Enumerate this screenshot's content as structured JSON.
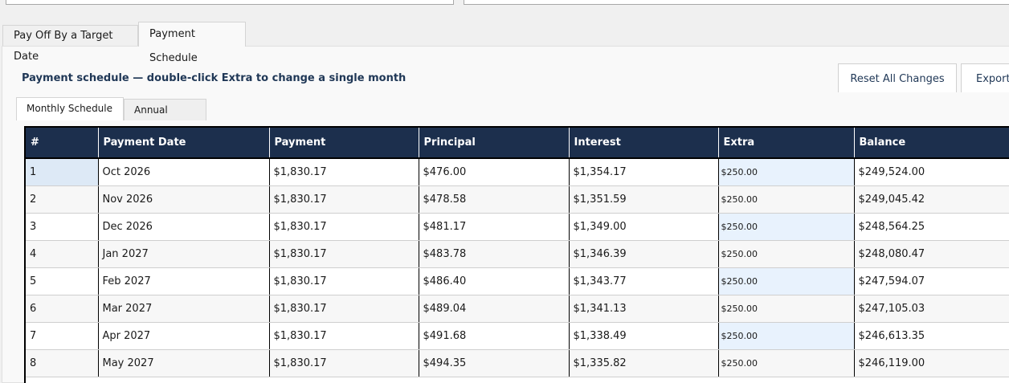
{
  "tabs": {
    "outer": [
      {
        "label": "Pay Off By a Target Date",
        "active": false
      },
      {
        "label": "Payment Schedule",
        "active": true
      }
    ],
    "inner": [
      {
        "label": "Monthly Schedule",
        "active": true
      },
      {
        "label": "Annual Totals",
        "active": false
      }
    ]
  },
  "schedule": {
    "heading": "Payment schedule — double-click Extra to change a single month",
    "reset_label": "Reset All Changes",
    "export_label": "Export"
  },
  "table": {
    "columns": [
      "#",
      "Payment Date",
      "Payment",
      "Principal",
      "Interest",
      "Extra",
      "Balance"
    ],
    "rows": [
      [
        "1",
        "Oct 2026",
        "$1,830.17",
        "$476.00",
        "$1,354.17",
        "$250.00",
        "$249,524.00"
      ],
      [
        "2",
        "Nov 2026",
        "$1,830.17",
        "$478.58",
        "$1,351.59",
        "$250.00",
        "$249,045.42"
      ],
      [
        "3",
        "Dec 2026",
        "$1,830.17",
        "$481.17",
        "$1,349.00",
        "$250.00",
        "$248,564.25"
      ],
      [
        "4",
        "Jan 2027",
        "$1,830.17",
        "$483.78",
        "$1,346.39",
        "$250.00",
        "$248,080.47"
      ],
      [
        "5",
        "Feb 2027",
        "$1,830.17",
        "$486.40",
        "$1,343.77",
        "$250.00",
        "$247,594.07"
      ],
      [
        "6",
        "Mar 2027",
        "$1,830.17",
        "$489.04",
        "$1,341.13",
        "$250.00",
        "$247,105.03"
      ],
      [
        "7",
        "Apr 2027",
        "$1,830.17",
        "$491.68",
        "$1,338.49",
        "$250.00",
        "$246,613.35"
      ],
      [
        "8",
        "May 2027",
        "$1,830.17",
        "$494.35",
        "$1,335.82",
        "$250.00",
        "$246,119.00"
      ]
    ]
  }
}
